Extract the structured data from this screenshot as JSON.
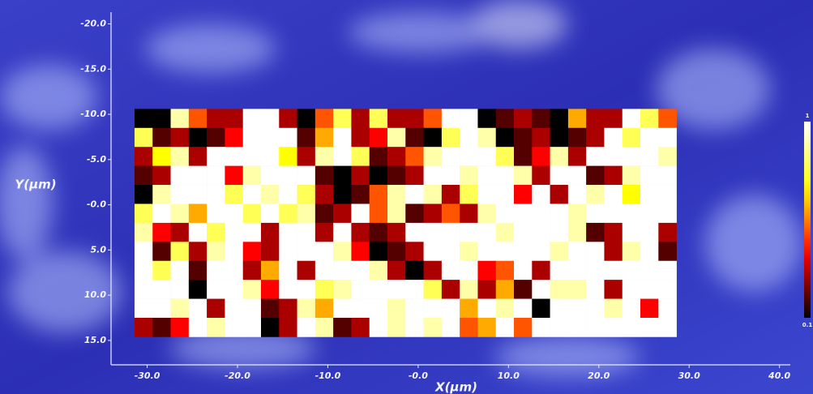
{
  "chart_data": {
    "type": "heatmap",
    "xlabel": "X(µm)",
    "ylabel": "Y(µm)",
    "xlim": [
      -34.0,
      41.2
    ],
    "ylim": [
      -21.3,
      17.7
    ],
    "y_inverted": true,
    "xticks": [
      {
        "value": -30,
        "label": "-30.0"
      },
      {
        "value": -20,
        "label": "-20.0"
      },
      {
        "value": -10,
        "label": "-10.0"
      },
      {
        "value": 0,
        "label": "-0.0"
      },
      {
        "value": 10,
        "label": "10.0"
      },
      {
        "value": 20,
        "label": "20.0"
      },
      {
        "value": 30,
        "label": "30.0"
      },
      {
        "value": 40,
        "label": "40.0"
      }
    ],
    "yticks": [
      {
        "value": -20,
        "label": "-20.0"
      },
      {
        "value": -15,
        "label": "-15.0"
      },
      {
        "value": -10,
        "label": "-10.0"
      },
      {
        "value": -5,
        "label": "-5.0"
      },
      {
        "value": 0,
        "label": "-0.0"
      },
      {
        "value": 5,
        "label": "5.0"
      },
      {
        "value": 10,
        "label": "10.0"
      },
      {
        "value": 15,
        "label": "15.0"
      }
    ],
    "x_edges": [
      -31.4,
      -29.4,
      -27.4,
      -25.4,
      -23.4,
      -21.4,
      -19.4,
      -17.4,
      -15.4,
      -13.4,
      -11.4,
      -9.4,
      -7.4,
      -5.4,
      -3.4,
      -1.4,
      0.6,
      2.6,
      4.6,
      6.6,
      8.6,
      10.6,
      12.6,
      14.6,
      16.6,
      18.6,
      20.6,
      22.6,
      24.6,
      26.6,
      28.6
    ],
    "y_edges": [
      -10.6,
      -8.5,
      -6.4,
      -4.3,
      -2.2,
      -0.1,
      2.0,
      4.1,
      6.2,
      8.3,
      10.4,
      12.5,
      14.6
    ],
    "colormap": "hot",
    "clim": [
      0.1,
      1
    ],
    "colorbar_ticks": [
      1,
      0.1
    ],
    "z": [
      [
        0.1,
        0.1,
        0.9,
        0.5,
        0.3,
        0.3,
        1,
        1,
        0.3,
        0.1,
        0.5,
        0.8,
        0.3,
        0.8,
        0.3,
        0.3,
        0.5,
        1,
        1,
        0.1,
        0.2,
        0.3,
        0.2,
        0.1,
        0.6,
        0.3,
        0.3,
        1,
        0.8,
        0.5
      ],
      [
        0.8,
        0.2,
        0.3,
        0.1,
        0.2,
        0.4,
        1,
        1,
        1,
        0.2,
        0.6,
        1,
        0.3,
        0.4,
        0.9,
        0.2,
        0.1,
        0.8,
        1,
        0.9,
        0.1,
        0.2,
        0.3,
        0.1,
        0.2,
        0.3,
        1,
        0.8,
        1,
        1
      ],
      [
        0.3,
        0.7,
        0.9,
        0.3,
        1,
        1,
        1,
        1,
        0.7,
        0.3,
        0.9,
        1,
        0.8,
        0.2,
        0.3,
        0.5,
        0.9,
        1,
        1,
        1,
        0.8,
        0.2,
        0.4,
        0.9,
        0.3,
        1,
        1,
        1,
        1,
        0.9
      ],
      [
        0.2,
        0.3,
        1,
        1,
        1,
        0.4,
        0.9,
        1,
        1,
        1,
        0.2,
        0.1,
        0.3,
        0.1,
        0.2,
        0.3,
        1,
        1,
        0.9,
        1,
        1,
        0.9,
        0.3,
        1,
        1,
        0.2,
        0.3,
        0.9,
        1,
        1
      ],
      [
        0.1,
        0.9,
        1,
        1,
        1,
        0.8,
        1,
        0.9,
        1,
        0.8,
        0.3,
        0.1,
        0.2,
        0.5,
        0.9,
        1,
        0.9,
        0.3,
        0.8,
        1,
        1,
        0.4,
        1,
        0.3,
        1,
        0.9,
        1,
        0.7,
        1,
        1
      ],
      [
        0.8,
        1,
        0.9,
        0.6,
        1,
        1,
        0.8,
        1,
        0.8,
        0.9,
        0.2,
        0.3,
        1,
        0.5,
        0.9,
        0.2,
        0.3,
        0.5,
        0.3,
        0.9,
        1,
        1,
        1,
        1,
        0.9,
        1,
        1,
        1,
        1,
        1
      ],
      [
        0.9,
        0.4,
        0.3,
        1,
        0.8,
        1,
        1,
        0.3,
        1,
        1,
        0.3,
        1,
        0.3,
        0.2,
        0.3,
        1,
        1,
        1,
        1,
        1,
        0.9,
        1,
        1,
        1,
        0.9,
        0.2,
        0.3,
        1,
        1,
        0.3
      ],
      [
        1,
        0.2,
        0.8,
        0.3,
        0.9,
        1,
        0.4,
        0.3,
        1,
        1,
        1,
        0.9,
        0.4,
        0.1,
        0.2,
        0.3,
        1,
        1,
        0.9,
        1,
        1,
        1,
        1,
        0.9,
        1,
        1,
        0.3,
        0.9,
        1,
        0.2
      ],
      [
        1,
        0.8,
        1,
        0.2,
        1,
        1,
        0.3,
        0.6,
        1,
        0.3,
        1,
        1,
        1,
        0.9,
        0.3,
        0.1,
        0.3,
        1,
        1,
        0.4,
        0.5,
        1,
        0.3,
        1,
        1,
        1,
        1,
        1,
        1,
        1
      ],
      [
        1,
        1,
        1,
        0.1,
        1,
        1,
        0.9,
        0.4,
        1,
        1,
        0.8,
        0.9,
        1,
        1,
        1,
        1,
        0.8,
        0.3,
        0.9,
        0.3,
        0.6,
        0.2,
        1,
        0.9,
        0.9,
        1,
        0.3,
        1,
        1,
        1
      ],
      [
        1,
        1,
        0.9,
        1,
        0.3,
        1,
        1,
        0.2,
        0.3,
        0.9,
        0.6,
        1,
        1,
        1,
        0.9,
        1,
        1,
        1,
        0.6,
        1,
        0.9,
        1,
        0.1,
        1,
        1,
        1,
        0.9,
        1,
        0.4,
        1
      ],
      [
        0.3,
        0.2,
        0.4,
        1,
        0.9,
        1,
        1,
        0.1,
        0.3,
        1,
        0.9,
        0.2,
        0.3,
        1,
        0.9,
        1,
        0.9,
        1,
        0.5,
        0.6,
        1,
        0.5,
        1,
        1,
        1,
        1,
        1,
        1,
        1,
        1
      ]
    ]
  }
}
